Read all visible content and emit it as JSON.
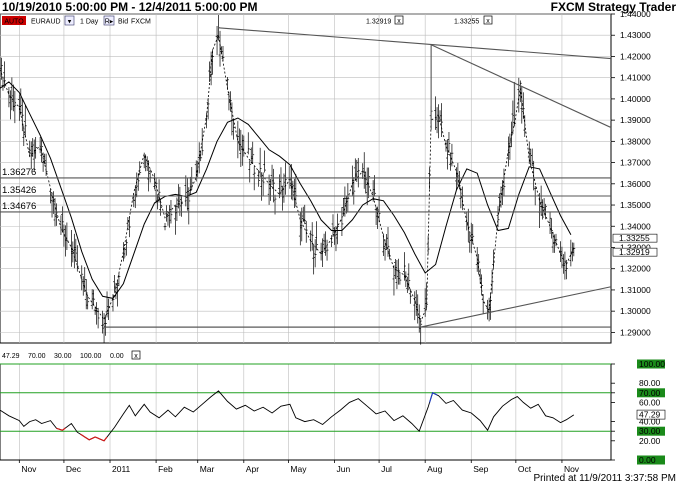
{
  "header": {
    "date_range": "10/19/2010 5:00:00 PM - 12/4/2011 5:00:00 PM",
    "brand": "FXCM Strategy Trader"
  },
  "toolbar": {
    "auto_label": "AUTO",
    "symbol": "EURAUD",
    "settings_glyph": "▾",
    "timeframe": "1 Day",
    "r_glyph": "R▸",
    "price_type": "Bid",
    "symbol_repeat": "FXCM",
    "line_value_1": "1.32919",
    "line_value_2": "1.33255",
    "close_glyph": "x"
  },
  "rsi_toolbar": {
    "values": [
      "47.29",
      "70.00",
      "30.00",
      "100.00",
      "0.00"
    ],
    "colors": [
      "#000000",
      "#1a7a1a",
      "#1a7a1a",
      "#1a7a1a",
      "#1a7a1a"
    ],
    "close_glyph": "x"
  },
  "footer": {
    "printed": "Printed at 11/9/2011 3:37:58 PM"
  },
  "chart_data": [
    {
      "type": "ohlc",
      "name": "EURAUD daily",
      "x_tick_labels": [
        "Nov",
        "Dec",
        "2011",
        "Feb",
        "Mar",
        "Apr",
        "May",
        "Jun",
        "Jul",
        "Aug",
        "Sep",
        "Oct",
        "Nov"
      ],
      "x_tick_dates": [
        "2010-11-01",
        "2010-12-01",
        "2011-01-01",
        "2011-02-01",
        "2011-03-01",
        "2011-04-01",
        "2011-05-01",
        "2011-06-01",
        "2011-07-01",
        "2011-08-01",
        "2011-09-01",
        "2011-10-01",
        "2011-11-01"
      ],
      "x_range": [
        "2010-10-19",
        "2011-12-04"
      ],
      "ylim": [
        1.285,
        1.44
      ],
      "y_ticks": [
        1.29,
        1.3,
        1.31,
        1.32,
        1.33,
        1.34,
        1.35,
        1.36,
        1.37,
        1.38,
        1.39,
        1.4,
        1.41,
        1.42,
        1.43,
        1.44
      ],
      "y_tick_labels": [
        "1.29000",
        "1.30000",
        "1.31000",
        "1.32000",
        "1.33000",
        "1.34000",
        "1.35000",
        "1.36000",
        "1.37000",
        "1.38000",
        "1.39000",
        "1.40000",
        "1.41000",
        "1.42000",
        "1.43000",
        "1.44000"
      ],
      "close_path": [
        [
          "2010-10-19",
          1.414
        ],
        [
          "2010-10-25",
          1.402
        ],
        [
          "2010-11-01",
          1.396
        ],
        [
          "2010-11-08",
          1.373
        ],
        [
          "2010-11-15",
          1.378
        ],
        [
          "2010-11-22",
          1.358
        ],
        [
          "2010-11-29",
          1.339
        ],
        [
          "2010-12-06",
          1.33
        ],
        [
          "2010-12-13",
          1.315
        ],
        [
          "2010-12-17",
          1.307
        ],
        [
          "2010-12-22",
          1.302
        ],
        [
          "2010-12-28",
          1.296
        ],
        [
          "2011-01-04",
          1.308
        ],
        [
          "2011-01-10",
          1.328
        ],
        [
          "2011-01-17",
          1.356
        ],
        [
          "2011-01-24",
          1.374
        ],
        [
          "2011-01-31",
          1.362
        ],
        [
          "2011-02-07",
          1.344
        ],
        [
          "2011-02-14",
          1.35
        ],
        [
          "2011-02-21",
          1.352
        ],
        [
          "2011-02-28",
          1.363
        ],
        [
          "2011-03-07",
          1.392
        ],
        [
          "2011-03-11",
          1.423
        ],
        [
          "2011-03-15",
          1.43
        ],
        [
          "2011-03-21",
          1.405
        ],
        [
          "2011-03-28",
          1.38
        ],
        [
          "2011-04-04",
          1.372
        ],
        [
          "2011-04-11",
          1.366
        ],
        [
          "2011-04-18",
          1.36
        ],
        [
          "2011-04-25",
          1.355
        ],
        [
          "2011-05-02",
          1.362
        ],
        [
          "2011-05-09",
          1.343
        ],
        [
          "2011-05-16",
          1.333
        ],
        [
          "2011-05-23",
          1.327
        ],
        [
          "2011-05-30",
          1.334
        ],
        [
          "2011-06-06",
          1.344
        ],
        [
          "2011-06-13",
          1.36
        ],
        [
          "2011-06-20",
          1.366
        ],
        [
          "2011-06-27",
          1.354
        ],
        [
          "2011-07-04",
          1.335
        ],
        [
          "2011-07-11",
          1.32
        ],
        [
          "2011-07-18",
          1.317
        ],
        [
          "2011-07-25",
          1.305
        ],
        [
          "2011-07-29",
          1.295
        ],
        [
          "2011-08-02",
          1.302
        ],
        [
          "2011-08-05",
          1.39
        ],
        [
          "2011-08-10",
          1.392
        ],
        [
          "2011-08-15",
          1.378
        ],
        [
          "2011-08-22",
          1.366
        ],
        [
          "2011-08-29",
          1.342
        ],
        [
          "2011-09-05",
          1.325
        ],
        [
          "2011-09-09",
          1.305
        ],
        [
          "2011-09-13",
          1.3
        ],
        [
          "2011-09-19",
          1.344
        ],
        [
          "2011-09-26",
          1.376
        ],
        [
          "2011-09-30",
          1.388
        ],
        [
          "2011-10-04",
          1.405
        ],
        [
          "2011-10-10",
          1.372
        ],
        [
          "2011-10-17",
          1.352
        ],
        [
          "2011-10-24",
          1.34
        ],
        [
          "2011-10-31",
          1.327
        ],
        [
          "2011-11-04",
          1.322
        ],
        [
          "2011-11-09",
          1.33
        ]
      ],
      "ma_path": [
        [
          "2010-10-19",
          1.405
        ],
        [
          "2010-10-25",
          1.408
        ],
        [
          "2010-11-01",
          1.403
        ],
        [
          "2010-11-08",
          1.393
        ],
        [
          "2010-11-15",
          1.383
        ],
        [
          "2010-11-22",
          1.372
        ],
        [
          "2010-11-29",
          1.358
        ],
        [
          "2010-12-06",
          1.344
        ],
        [
          "2010-12-13",
          1.328
        ],
        [
          "2010-12-20",
          1.315
        ],
        [
          "2010-12-27",
          1.307
        ],
        [
          "2011-01-03",
          1.306
        ],
        [
          "2011-01-10",
          1.313
        ],
        [
          "2011-01-17",
          1.327
        ],
        [
          "2011-01-24",
          1.341
        ],
        [
          "2011-01-31",
          1.351
        ],
        [
          "2011-02-07",
          1.354
        ],
        [
          "2011-02-14",
          1.355
        ],
        [
          "2011-02-21",
          1.354
        ],
        [
          "2011-02-28",
          1.356
        ],
        [
          "2011-03-07",
          1.367
        ],
        [
          "2011-03-14",
          1.38
        ],
        [
          "2011-03-21",
          1.389
        ],
        [
          "2011-03-28",
          1.391
        ],
        [
          "2011-04-04",
          1.388
        ],
        [
          "2011-04-11",
          1.382
        ],
        [
          "2011-04-18",
          1.376
        ],
        [
          "2011-04-25",
          1.373
        ],
        [
          "2011-05-02",
          1.369
        ],
        [
          "2011-05-09",
          1.36
        ],
        [
          "2011-05-16",
          1.352
        ],
        [
          "2011-05-23",
          1.343
        ],
        [
          "2011-05-30",
          1.338
        ],
        [
          "2011-06-06",
          1.338
        ],
        [
          "2011-06-13",
          1.343
        ],
        [
          "2011-06-20",
          1.35
        ],
        [
          "2011-06-27",
          1.353
        ],
        [
          "2011-07-04",
          1.352
        ],
        [
          "2011-07-11",
          1.345
        ],
        [
          "2011-07-18",
          1.337
        ],
        [
          "2011-07-25",
          1.327
        ],
        [
          "2011-08-01",
          1.318
        ],
        [
          "2011-08-08",
          1.322
        ],
        [
          "2011-08-15",
          1.34
        ],
        [
          "2011-08-22",
          1.357
        ],
        [
          "2011-08-29",
          1.367
        ],
        [
          "2011-09-05",
          1.365
        ],
        [
          "2011-09-12",
          1.35
        ],
        [
          "2011-09-19",
          1.338
        ],
        [
          "2011-09-26",
          1.339
        ],
        [
          "2011-10-03",
          1.355
        ],
        [
          "2011-10-10",
          1.368
        ],
        [
          "2011-10-17",
          1.367
        ],
        [
          "2011-10-24",
          1.356
        ],
        [
          "2011-10-31",
          1.345
        ],
        [
          "2011-11-07",
          1.336
        ]
      ],
      "horizontal_levels": [
        {
          "label": "1.36276",
          "value": 1.36276
        },
        {
          "label": "1.35426",
          "value": 1.35426
        },
        {
          "label": "1.34676",
          "value": 1.34676
        }
      ],
      "support_level": 1.2925,
      "current_price_labels": [
        "1.33255",
        "1.32919"
      ],
      "trendlines": [
        {
          "from": [
            "2011-03-15",
            1.4335
          ],
          "to": [
            "2011-12-04",
            1.419
          ]
        },
        {
          "from": [
            "2011-08-05",
            1.4255
          ],
          "to": [
            "2011-12-04",
            1.3865
          ]
        },
        {
          "from": [
            "2011-07-29",
            1.2925
          ],
          "to": [
            "2011-12-04",
            1.3115
          ]
        },
        {
          "from": [
            "2010-12-28",
            1.2925
          ],
          "to": [
            "2011-07-29",
            1.2925
          ]
        }
      ],
      "spike_lines": [
        {
          "at": "2011-08-05",
          "from": 1.4255,
          "to": 1.388
        },
        {
          "at": "2011-09-30",
          "from": 1.408,
          "to": 1.39
        }
      ]
    },
    {
      "type": "line",
      "name": "RSI",
      "ylim": [
        0,
        100
      ],
      "y_tick_labels": [
        "0.00",
        "20.00",
        "30.00",
        "40.00",
        "60.00",
        "70.00",
        "80.00",
        "100.00"
      ],
      "y_ticks": [
        0,
        20,
        30,
        40,
        60,
        70,
        80,
        100
      ],
      "bands": [
        0,
        30,
        70,
        100
      ],
      "current_value": "47.29",
      "series": [
        [
          "2010-10-19",
          52
        ],
        [
          "2010-10-25",
          46
        ],
        [
          "2010-11-01",
          41
        ],
        [
          "2010-11-04",
          35
        ],
        [
          "2010-11-08",
          40
        ],
        [
          "2010-11-12",
          42
        ],
        [
          "2010-11-16",
          38
        ],
        [
          "2010-11-22",
          41
        ],
        [
          "2010-11-26",
          33
        ],
        [
          "2010-11-30",
          31
        ],
        [
          "2010-12-06",
          38
        ],
        [
          "2010-12-10",
          29
        ],
        [
          "2010-12-14",
          25
        ],
        [
          "2010-12-18",
          21
        ],
        [
          "2010-12-22",
          24
        ],
        [
          "2010-12-28",
          20
        ],
        [
          "2011-01-04",
          34
        ],
        [
          "2011-01-10",
          48
        ],
        [
          "2011-01-14",
          57
        ],
        [
          "2011-01-18",
          46
        ],
        [
          "2011-01-24",
          58
        ],
        [
          "2011-01-28",
          50
        ],
        [
          "2011-02-03",
          44
        ],
        [
          "2011-02-09",
          52
        ],
        [
          "2011-02-14",
          45
        ],
        [
          "2011-02-20",
          55
        ],
        [
          "2011-02-26",
          50
        ],
        [
          "2011-03-04",
          58
        ],
        [
          "2011-03-10",
          66
        ],
        [
          "2011-03-15",
          72
        ],
        [
          "2011-03-21",
          61
        ],
        [
          "2011-03-27",
          53
        ],
        [
          "2011-04-02",
          57
        ],
        [
          "2011-04-08",
          51
        ],
        [
          "2011-04-14",
          55
        ],
        [
          "2011-04-20",
          49
        ],
        [
          "2011-04-26",
          56
        ],
        [
          "2011-05-02",
          58
        ],
        [
          "2011-05-06",
          44
        ],
        [
          "2011-05-12",
          40
        ],
        [
          "2011-05-18",
          42
        ],
        [
          "2011-05-24",
          37
        ],
        [
          "2011-05-30",
          45
        ],
        [
          "2011-06-05",
          52
        ],
        [
          "2011-06-11",
          60
        ],
        [
          "2011-06-17",
          64
        ],
        [
          "2011-06-23",
          56
        ],
        [
          "2011-06-29",
          48
        ],
        [
          "2011-07-05",
          51
        ],
        [
          "2011-07-11",
          41
        ],
        [
          "2011-07-17",
          46
        ],
        [
          "2011-07-23",
          38
        ],
        [
          "2011-07-28",
          30
        ],
        [
          "2011-08-03",
          55
        ],
        [
          "2011-08-06",
          70
        ],
        [
          "2011-08-10",
          67
        ],
        [
          "2011-08-15",
          59
        ],
        [
          "2011-08-20",
          62
        ],
        [
          "2011-08-26",
          52
        ],
        [
          "2011-09-01",
          49
        ],
        [
          "2011-09-07",
          41
        ],
        [
          "2011-09-12",
          31
        ],
        [
          "2011-09-16",
          45
        ],
        [
          "2011-09-22",
          56
        ],
        [
          "2011-09-28",
          63
        ],
        [
          "2011-10-02",
          66
        ],
        [
          "2011-10-06",
          60
        ],
        [
          "2011-10-11",
          54
        ],
        [
          "2011-10-16",
          58
        ],
        [
          "2011-10-21",
          46
        ],
        [
          "2011-10-26",
          44
        ],
        [
          "2011-10-31",
          39
        ],
        [
          "2011-11-04",
          42
        ],
        [
          "2011-11-09",
          47
        ]
      ],
      "oversold_segments": [
        [
          "2010-11-26",
          "2010-12-02"
        ],
        [
          "2010-12-12",
          "2010-12-30"
        ]
      ],
      "overbought_segments": [
        [
          "2011-08-04",
          "2011-08-09"
        ]
      ],
      "oversold_color": "#d01818",
      "overbought_color": "#2040c0"
    }
  ],
  "colors": {
    "grid": "#bdbdbd",
    "band": "#22a022",
    "bar": "#000000",
    "label_green": "#1a8a1a",
    "auto_badge": "#cc0000"
  }
}
